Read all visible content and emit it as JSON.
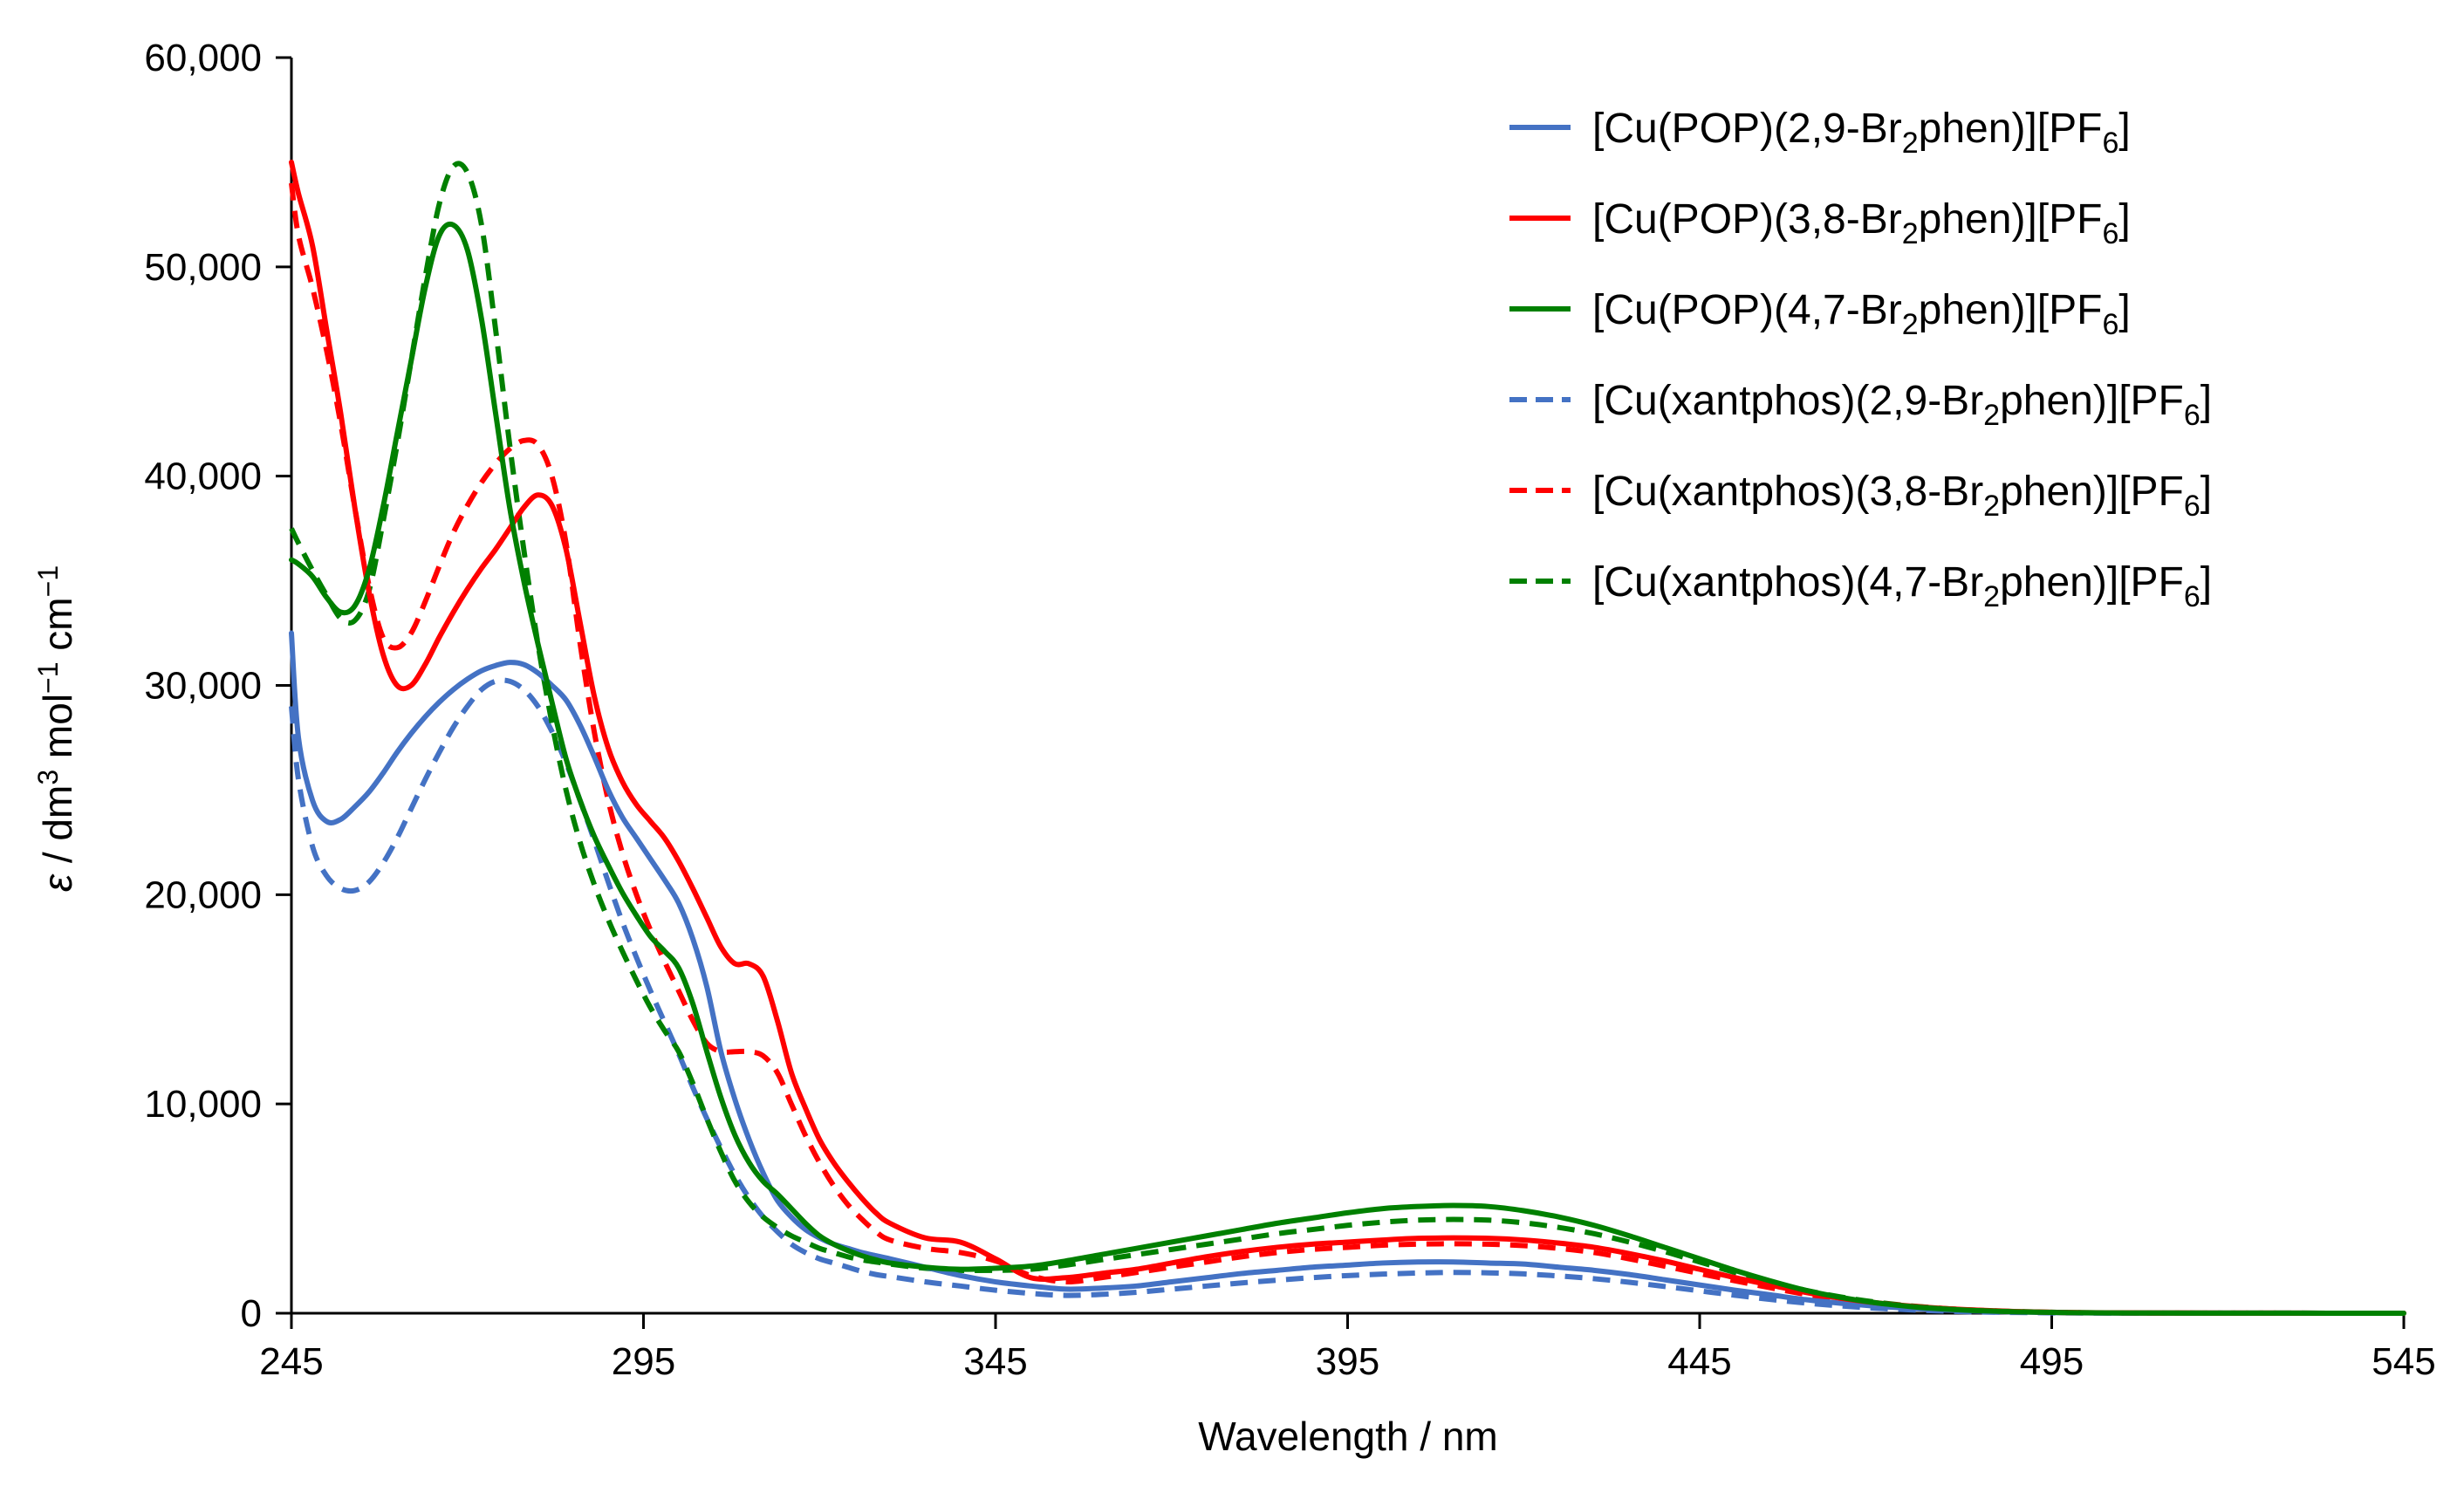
{
  "chart_data": {
    "type": "line",
    "title": "",
    "xlabel": "Wavelength / nm",
    "ylabel": {
      "symbol": "ε",
      "text": " / dm",
      "sup1": "3",
      "text2": " mol",
      "sup2": "−1",
      "text3": " cm",
      "sup3": "−1"
    },
    "xlim": [
      245,
      545
    ],
    "ylim": [
      0,
      60000
    ],
    "x_ticks": [
      245,
      295,
      345,
      395,
      445,
      495,
      545
    ],
    "x_tick_labels": [
      "245",
      "295",
      "345",
      "395",
      "445",
      "495",
      "545"
    ],
    "y_ticks": [
      0,
      10000,
      20000,
      30000,
      40000,
      50000,
      60000
    ],
    "y_tick_labels": [
      "0",
      "10,000",
      "20,000",
      "30,000",
      "40,000",
      "50,000",
      "60,000"
    ],
    "grid": false,
    "legend_position": "top-right",
    "series": [
      {
        "name": "[Cu(POP)(2,9-Br2phen)][PF6]",
        "label_parts": [
          "[Cu(POP)(2,9-Br",
          "2",
          "phen)][PF",
          "6",
          "]"
        ],
        "color": "#4472C4",
        "dash": "solid",
        "x": [
          245,
          246,
          248,
          250,
          252,
          254,
          256,
          258,
          260,
          262,
          264,
          266,
          268,
          270,
          272,
          274,
          276,
          278,
          280,
          282,
          284,
          286,
          288,
          290,
          292,
          294,
          296,
          298,
          300,
          302,
          304,
          306,
          308,
          310,
          312,
          314,
          316,
          318,
          320,
          322,
          324,
          326,
          328,
          330,
          335,
          340,
          345,
          350,
          355,
          360,
          365,
          370,
          375,
          380,
          385,
          390,
          395,
          400,
          405,
          410,
          415,
          420,
          425,
          430,
          435,
          440,
          445,
          450,
          455,
          460,
          465,
          470,
          475,
          480,
          485,
          490,
          495,
          500,
          510,
          520,
          530,
          545
        ],
        "y": [
          32500,
          27500,
          24500,
          23500,
          23600,
          24200,
          24900,
          25800,
          26800,
          27700,
          28500,
          29200,
          29800,
          30300,
          30700,
          30950,
          31100,
          31000,
          30600,
          30000,
          29300,
          28100,
          26600,
          25000,
          23700,
          22700,
          21700,
          20700,
          19600,
          17900,
          15600,
          12500,
          10200,
          8300,
          6700,
          5400,
          4600,
          4000,
          3600,
          3300,
          3100,
          2900,
          2750,
          2600,
          2200,
          1800,
          1500,
          1300,
          1150,
          1200,
          1300,
          1500,
          1700,
          1900,
          2050,
          2200,
          2300,
          2400,
          2450,
          2450,
          2400,
          2350,
          2200,
          2050,
          1850,
          1600,
          1350,
          1100,
          880,
          650,
          480,
          340,
          230,
          150,
          100,
          60,
          30,
          15,
          8,
          5,
          3,
          0
        ]
      },
      {
        "name": "[Cu(POP)(3,8-Br2phen)][PF6]",
        "label_parts": [
          "[Cu(POP)(3,8-Br",
          "2",
          "phen)][PF",
          "6",
          "]"
        ],
        "color": "#FF0000",
        "dash": "solid",
        "x": [
          245,
          246,
          248,
          250,
          252,
          254,
          256,
          258,
          260,
          262,
          264,
          266,
          268,
          270,
          272,
          274,
          276,
          278,
          280,
          282,
          284,
          286,
          288,
          290,
          292,
          294,
          296,
          298,
          300,
          302,
          304,
          306,
          308,
          310,
          312,
          314,
          316,
          318,
          320,
          322,
          324,
          326,
          328,
          330,
          335,
          340,
          345,
          350,
          355,
          360,
          365,
          370,
          375,
          380,
          385,
          390,
          395,
          400,
          405,
          410,
          415,
          420,
          425,
          430,
          435,
          440,
          445,
          450,
          455,
          460,
          465,
          470,
          475,
          480,
          485,
          490,
          495,
          500,
          510,
          520,
          530,
          545
        ],
        "y": [
          55000,
          53500,
          51000,
          47000,
          43000,
          38500,
          34500,
          31500,
          30000,
          30000,
          31000,
          32300,
          33500,
          34600,
          35600,
          36500,
          37500,
          38500,
          39100,
          38600,
          36500,
          33000,
          29500,
          27000,
          25400,
          24300,
          23500,
          22700,
          21600,
          20300,
          18900,
          17500,
          16700,
          16700,
          16100,
          14000,
          11500,
          9800,
          8300,
          7200,
          6300,
          5500,
          4800,
          4300,
          3600,
          3400,
          2600,
          1700,
          1700,
          1900,
          2100,
          2400,
          2700,
          2950,
          3150,
          3300,
          3400,
          3500,
          3580,
          3600,
          3580,
          3500,
          3350,
          3150,
          2850,
          2500,
          2100,
          1700,
          1350,
          1000,
          720,
          500,
          340,
          220,
          140,
          80,
          45,
          25,
          12,
          6,
          3,
          0
        ]
      },
      {
        "name": "[Cu(POP)(4,7-Br2phen)][PF6]",
        "label_parts": [
          "[Cu(POP)(4,7-Br",
          "2",
          "phen)][PF",
          "6",
          "]"
        ],
        "color": "#008000",
        "dash": "solid",
        "x": [
          245,
          246,
          248,
          250,
          252,
          254,
          256,
          258,
          260,
          262,
          264,
          266,
          268,
          270,
          272,
          274,
          276,
          278,
          280,
          282,
          284,
          286,
          288,
          290,
          292,
          294,
          296,
          298,
          300,
          302,
          304,
          306,
          308,
          310,
          312,
          314,
          316,
          318,
          320,
          322,
          324,
          326,
          328,
          330,
          335,
          340,
          345,
          350,
          355,
          360,
          365,
          370,
          375,
          380,
          385,
          390,
          395,
          400,
          405,
          410,
          415,
          420,
          425,
          430,
          435,
          440,
          445,
          450,
          455,
          460,
          465,
          470,
          475,
          480,
          485,
          490,
          495,
          500,
          510,
          520,
          530,
          545
        ],
        "y": [
          36000,
          35800,
          35200,
          34200,
          33500,
          33800,
          35500,
          38500,
          42000,
          45500,
          49000,
          51500,
          52000,
          50800,
          47500,
          43000,
          38500,
          35000,
          32000,
          29200,
          26500,
          24500,
          22800,
          21400,
          20100,
          19000,
          18000,
          17300,
          16500,
          14800,
          12500,
          10300,
          8500,
          7200,
          6300,
          5700,
          5000,
          4300,
          3700,
          3300,
          3000,
          2750,
          2550,
          2400,
          2200,
          2100,
          2150,
          2250,
          2500,
          2800,
          3100,
          3400,
          3700,
          4000,
          4300,
          4550,
          4800,
          5000,
          5100,
          5150,
          5100,
          4900,
          4600,
          4200,
          3700,
          3150,
          2600,
          2050,
          1550,
          1100,
          760,
          500,
          320,
          200,
          120,
          70,
          40,
          20,
          10,
          5,
          3,
          0
        ]
      },
      {
        "name": "[Cu(xantphos)(2,9-Br2phen)][PF6]",
        "label_parts": [
          "[Cu(xantphos)(2,9-Br",
          "2",
          "phen)][PF",
          "6",
          "]"
        ],
        "color": "#4472C4",
        "dash": "dashed",
        "x": [
          245,
          246,
          248,
          250,
          252,
          254,
          256,
          258,
          260,
          262,
          264,
          266,
          268,
          270,
          272,
          274,
          276,
          278,
          280,
          282,
          284,
          286,
          288,
          290,
          292,
          294,
          296,
          298,
          300,
          302,
          304,
          306,
          308,
          310,
          312,
          314,
          316,
          318,
          320,
          322,
          324,
          326,
          328,
          330,
          335,
          340,
          345,
          350,
          355,
          360,
          365,
          370,
          375,
          380,
          385,
          390,
          395,
          400,
          405,
          410,
          415,
          420,
          425,
          430,
          435,
          440,
          445,
          450,
          455,
          460,
          465,
          470,
          475,
          480,
          485,
          490,
          495,
          500,
          510,
          520,
          530,
          545
        ],
        "y": [
          29000,
          25500,
          22300,
          20900,
          20300,
          20200,
          20600,
          21500,
          22700,
          24100,
          25500,
          26800,
          28000,
          29000,
          29800,
          30200,
          30200,
          29800,
          29000,
          27800,
          26300,
          24500,
          22600,
          20600,
          18700,
          17000,
          15400,
          13900,
          12400,
          10800,
          9300,
          7900,
          6600,
          5500,
          4600,
          3900,
          3300,
          2900,
          2600,
          2400,
          2200,
          2000,
          1850,
          1750,
          1500,
          1300,
          1100,
          950,
          850,
          900,
          1000,
          1150,
          1300,
          1450,
          1580,
          1700,
          1800,
          1870,
          1920,
          1950,
          1930,
          1880,
          1780,
          1650,
          1480,
          1280,
          1070,
          860,
          660,
          490,
          350,
          240,
          160,
          100,
          60,
          35,
          18,
          10,
          5,
          3,
          1,
          0
        ]
      },
      {
        "name": "[Cu(xantphos)(3,8-Br2phen)][PF6]",
        "label_parts": [
          "[Cu(xantphos)(3,8-Br",
          "2",
          "phen)][PF",
          "6",
          "]"
        ],
        "color": "#FF0000",
        "dash": "dashed",
        "x": [
          245,
          246,
          248,
          250,
          252,
          254,
          256,
          258,
          260,
          262,
          264,
          266,
          268,
          270,
          272,
          274,
          276,
          278,
          280,
          282,
          284,
          286,
          288,
          290,
          292,
          294,
          296,
          298,
          300,
          302,
          304,
          306,
          308,
          310,
          312,
          314,
          316,
          318,
          320,
          322,
          324,
          326,
          328,
          330,
          335,
          340,
          345,
          350,
          355,
          360,
          365,
          370,
          375,
          380,
          385,
          390,
          395,
          400,
          405,
          410,
          415,
          420,
          425,
          430,
          435,
          440,
          445,
          450,
          455,
          460,
          465,
          470,
          475,
          480,
          485,
          490,
          495,
          500,
          510,
          520,
          530,
          545
        ],
        "y": [
          54000,
          51500,
          49000,
          46000,
          42500,
          38500,
          34800,
          32300,
          31800,
          32500,
          34000,
          35700,
          37300,
          38600,
          39700,
          40600,
          41300,
          41700,
          41500,
          40000,
          36800,
          32000,
          27800,
          24500,
          22000,
          20000,
          18300,
          16800,
          15400,
          14000,
          12900,
          12500,
          12500,
          12500,
          12300,
          11500,
          10000,
          8500,
          7200,
          6100,
          5200,
          4500,
          3900,
          3500,
          3100,
          2900,
          2500,
          1800,
          1500,
          1700,
          1950,
          2200,
          2450,
          2700,
          2900,
          3050,
          3150,
          3250,
          3300,
          3320,
          3300,
          3230,
          3100,
          2900,
          2600,
          2250,
          1900,
          1550,
          1220,
          910,
          660,
          460,
          310,
          200,
          125,
          75,
          42,
          22,
          11,
          5,
          2,
          0
        ]
      },
      {
        "name": "[Cu(xantphos)(4,7-Br2phen)][PF6]",
        "label_parts": [
          "[Cu(xantphos)(4,7-Br",
          "2",
          "phen)][PF",
          "6",
          "]"
        ],
        "color": "#008000",
        "dash": "dashed",
        "x": [
          245,
          246,
          248,
          250,
          252,
          254,
          256,
          258,
          260,
          262,
          264,
          266,
          268,
          270,
          272,
          274,
          276,
          278,
          280,
          282,
          284,
          286,
          288,
          290,
          292,
          294,
          296,
          298,
          300,
          302,
          304,
          306,
          308,
          310,
          312,
          314,
          316,
          318,
          320,
          322,
          324,
          326,
          328,
          330,
          335,
          340,
          345,
          350,
          355,
          360,
          365,
          370,
          375,
          380,
          385,
          390,
          395,
          400,
          405,
          410,
          415,
          420,
          425,
          430,
          435,
          440,
          445,
          450,
          455,
          460,
          465,
          470,
          475,
          480,
          485,
          490,
          495,
          500,
          510,
          520,
          530,
          545
        ],
        "y": [
          37500,
          36800,
          35500,
          34300,
          33200,
          33100,
          34500,
          37800,
          41500,
          45500,
          49500,
          53000,
          54800,
          54500,
          52000,
          47000,
          41500,
          36500,
          32000,
          28200,
          25000,
          22500,
          20500,
          18800,
          17300,
          15900,
          14600,
          13500,
          12500,
          11000,
          9300,
          7700,
          6300,
          5300,
          4600,
          4100,
          3700,
          3400,
          3100,
          2900,
          2700,
          2550,
          2450,
          2350,
          2150,
          2050,
          2050,
          2100,
          2300,
          2550,
          2800,
          3050,
          3300,
          3550,
          3800,
          4000,
          4200,
          4350,
          4450,
          4480,
          4450,
          4320,
          4100,
          3800,
          3400,
          2950,
          2450,
          1950,
          1500,
          1100,
          780,
          530,
          350,
          220,
          135,
          80,
          45,
          25,
          12,
          6,
          3,
          0
        ]
      }
    ]
  }
}
